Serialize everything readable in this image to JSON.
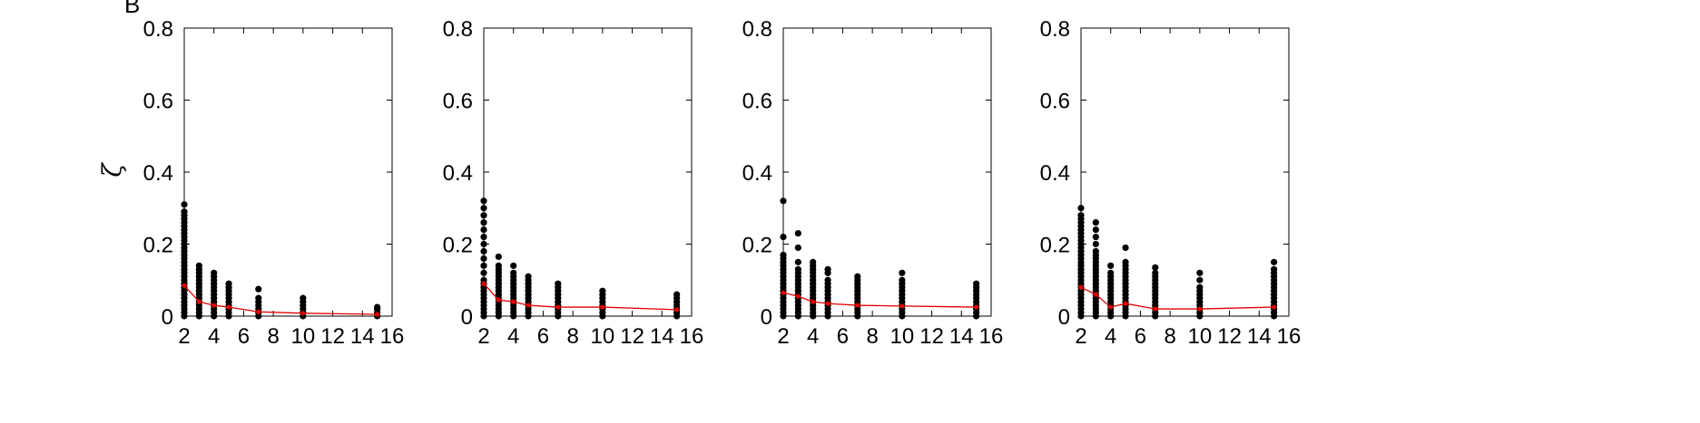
{
  "figure": {
    "panel_letter": "B",
    "ylabel": "ζ"
  },
  "style": {
    "point_color": "#000000",
    "mean_color": "#e00000",
    "axis_color": "#000000"
  },
  "chart_data": [
    {
      "type": "scatter",
      "xlim": [
        2,
        16
      ],
      "ylim": [
        0,
        0.8
      ],
      "xticks": [
        2,
        4,
        6,
        8,
        10,
        12,
        14,
        16
      ],
      "yticks": [
        0,
        0.2,
        0.4,
        0.6,
        0.8
      ],
      "ytick_labels": [
        "0",
        "0.2",
        "0.4",
        "0.6",
        "0.8"
      ],
      "ylabel": "ζ",
      "grid": false,
      "points": [
        {
          "x": 2,
          "y": [
            0.0,
            0.01,
            0.02,
            0.03,
            0.04,
            0.05,
            0.06,
            0.07,
            0.08,
            0.09,
            0.1,
            0.11,
            0.12,
            0.13,
            0.14,
            0.15,
            0.16,
            0.17,
            0.18,
            0.19,
            0.2,
            0.21,
            0.22,
            0.23,
            0.24,
            0.25,
            0.26,
            0.27,
            0.28,
            0.29,
            0.31
          ]
        },
        {
          "x": 3,
          "y": [
            0.0,
            0.01,
            0.02,
            0.03,
            0.04,
            0.05,
            0.06,
            0.07,
            0.08,
            0.09,
            0.1,
            0.11,
            0.12,
            0.13,
            0.14
          ]
        },
        {
          "x": 4,
          "y": [
            0.0,
            0.01,
            0.02,
            0.03,
            0.04,
            0.05,
            0.06,
            0.07,
            0.08,
            0.09,
            0.1,
            0.11,
            0.12
          ]
        },
        {
          "x": 5,
          "y": [
            0.0,
            0.01,
            0.02,
            0.03,
            0.04,
            0.05,
            0.06,
            0.07,
            0.08,
            0.09
          ]
        },
        {
          "x": 7,
          "y": [
            0.0,
            0.01,
            0.02,
            0.03,
            0.04,
            0.05,
            0.075
          ]
        },
        {
          "x": 10,
          "y": [
            0.0,
            0.01,
            0.02,
            0.03,
            0.04,
            0.05
          ]
        },
        {
          "x": 15,
          "y": [
            0.0,
            0.01,
            0.02,
            0.025
          ]
        }
      ],
      "mean_series": {
        "x": [
          2,
          3,
          4,
          5,
          7,
          10,
          15
        ],
        "y": [
          0.085,
          0.04,
          0.03,
          0.025,
          0.012,
          0.008,
          0.005
        ]
      }
    },
    {
      "type": "scatter",
      "xlim": [
        2,
        16
      ],
      "ylim": [
        0,
        0.8
      ],
      "xticks": [
        2,
        4,
        6,
        8,
        10,
        12,
        14,
        16
      ],
      "yticks": [
        0,
        0.2,
        0.4,
        0.6,
        0.8
      ],
      "ytick_labels": [
        "0",
        "0.2",
        "0.4",
        "0.6",
        "0.8"
      ],
      "grid": false,
      "points": [
        {
          "x": 2,
          "y": [
            0.0,
            0.01,
            0.02,
            0.03,
            0.04,
            0.05,
            0.06,
            0.07,
            0.08,
            0.09,
            0.1,
            0.12,
            0.14,
            0.16,
            0.18,
            0.2,
            0.22,
            0.24,
            0.26,
            0.28,
            0.3,
            0.32
          ]
        },
        {
          "x": 3,
          "y": [
            0.0,
            0.01,
            0.02,
            0.03,
            0.04,
            0.05,
            0.06,
            0.07,
            0.08,
            0.09,
            0.1,
            0.11,
            0.12,
            0.13,
            0.14,
            0.165
          ]
        },
        {
          "x": 4,
          "y": [
            0.0,
            0.01,
            0.02,
            0.03,
            0.04,
            0.05,
            0.06,
            0.07,
            0.08,
            0.09,
            0.1,
            0.11,
            0.12,
            0.14
          ]
        },
        {
          "x": 5,
          "y": [
            0.0,
            0.01,
            0.02,
            0.03,
            0.04,
            0.05,
            0.06,
            0.07,
            0.08,
            0.09,
            0.1,
            0.11
          ]
        },
        {
          "x": 7,
          "y": [
            0.0,
            0.01,
            0.02,
            0.03,
            0.04,
            0.05,
            0.06,
            0.07,
            0.08,
            0.09
          ]
        },
        {
          "x": 10,
          "y": [
            0.0,
            0.01,
            0.02,
            0.03,
            0.04,
            0.05,
            0.06,
            0.07
          ]
        },
        {
          "x": 15,
          "y": [
            0.0,
            0.01,
            0.02,
            0.03,
            0.04,
            0.05,
            0.06
          ]
        }
      ],
      "mean_series": {
        "x": [
          2,
          3,
          4,
          5,
          7,
          10,
          15
        ],
        "y": [
          0.09,
          0.045,
          0.04,
          0.03,
          0.025,
          0.025,
          0.018
        ]
      }
    },
    {
      "type": "scatter",
      "xlim": [
        2,
        16
      ],
      "ylim": [
        0,
        0.8
      ],
      "xticks": [
        2,
        4,
        6,
        8,
        10,
        12,
        14,
        16
      ],
      "yticks": [
        0,
        0.2,
        0.4,
        0.6,
        0.8
      ],
      "ytick_labels": [
        "0",
        "0.2",
        "0.4",
        "0.6",
        "0.8"
      ],
      "grid": false,
      "points": [
        {
          "x": 2,
          "y": [
            0.0,
            0.01,
            0.02,
            0.03,
            0.04,
            0.05,
            0.06,
            0.07,
            0.08,
            0.09,
            0.1,
            0.11,
            0.12,
            0.13,
            0.14,
            0.15,
            0.16,
            0.17,
            0.22,
            0.32
          ]
        },
        {
          "x": 3,
          "y": [
            0.0,
            0.01,
            0.02,
            0.03,
            0.04,
            0.05,
            0.06,
            0.07,
            0.08,
            0.09,
            0.1,
            0.11,
            0.12,
            0.13,
            0.15,
            0.19,
            0.23
          ]
        },
        {
          "x": 4,
          "y": [
            0.0,
            0.01,
            0.02,
            0.03,
            0.04,
            0.05,
            0.06,
            0.07,
            0.08,
            0.09,
            0.1,
            0.11,
            0.12,
            0.13,
            0.14,
            0.15
          ]
        },
        {
          "x": 5,
          "y": [
            0.0,
            0.01,
            0.02,
            0.03,
            0.04,
            0.05,
            0.06,
            0.07,
            0.08,
            0.09,
            0.1,
            0.12,
            0.13
          ]
        },
        {
          "x": 7,
          "y": [
            0.0,
            0.01,
            0.02,
            0.03,
            0.04,
            0.05,
            0.06,
            0.07,
            0.08,
            0.09,
            0.1,
            0.11
          ]
        },
        {
          "x": 10,
          "y": [
            0.0,
            0.01,
            0.02,
            0.03,
            0.04,
            0.05,
            0.06,
            0.07,
            0.08,
            0.09,
            0.1,
            0.12
          ]
        },
        {
          "x": 15,
          "y": [
            0.0,
            0.01,
            0.02,
            0.03,
            0.04,
            0.05,
            0.06,
            0.07,
            0.08,
            0.09
          ]
        }
      ],
      "mean_series": {
        "x": [
          2,
          3,
          4,
          5,
          7,
          10,
          15
        ],
        "y": [
          0.065,
          0.055,
          0.04,
          0.035,
          0.03,
          0.028,
          0.025
        ]
      }
    },
    {
      "type": "scatter",
      "xlim": [
        2,
        16
      ],
      "ylim": [
        0,
        0.8
      ],
      "xticks": [
        2,
        4,
        6,
        8,
        10,
        12,
        14,
        16
      ],
      "yticks": [
        0,
        0.2,
        0.4,
        0.6,
        0.8
      ],
      "ytick_labels": [
        "0",
        "0.2",
        "0.4",
        "0.6",
        "0.8"
      ],
      "grid": false,
      "points": [
        {
          "x": 2,
          "y": [
            0.0,
            0.01,
            0.02,
            0.03,
            0.04,
            0.05,
            0.06,
            0.07,
            0.08,
            0.09,
            0.1,
            0.11,
            0.12,
            0.13,
            0.14,
            0.15,
            0.16,
            0.17,
            0.18,
            0.19,
            0.2,
            0.21,
            0.22,
            0.23,
            0.24,
            0.25,
            0.26,
            0.27,
            0.28,
            0.3
          ]
        },
        {
          "x": 3,
          "y": [
            0.0,
            0.01,
            0.02,
            0.03,
            0.04,
            0.05,
            0.06,
            0.07,
            0.08,
            0.09,
            0.1,
            0.11,
            0.12,
            0.13,
            0.14,
            0.15,
            0.16,
            0.17,
            0.18,
            0.2,
            0.22,
            0.24,
            0.26
          ]
        },
        {
          "x": 4,
          "y": [
            0.0,
            0.01,
            0.02,
            0.03,
            0.04,
            0.05,
            0.06,
            0.07,
            0.08,
            0.09,
            0.1,
            0.11,
            0.12,
            0.14
          ]
        },
        {
          "x": 5,
          "y": [
            0.0,
            0.01,
            0.02,
            0.03,
            0.04,
            0.05,
            0.06,
            0.07,
            0.08,
            0.09,
            0.1,
            0.11,
            0.12,
            0.13,
            0.14,
            0.15,
            0.19
          ]
        },
        {
          "x": 7,
          "y": [
            0.0,
            0.01,
            0.02,
            0.03,
            0.04,
            0.05,
            0.06,
            0.07,
            0.08,
            0.09,
            0.1,
            0.11,
            0.12,
            0.135
          ]
        },
        {
          "x": 10,
          "y": [
            0.0,
            0.01,
            0.02,
            0.03,
            0.04,
            0.05,
            0.06,
            0.07,
            0.08,
            0.1,
            0.12
          ]
        },
        {
          "x": 15,
          "y": [
            0.0,
            0.01,
            0.02,
            0.03,
            0.04,
            0.05,
            0.06,
            0.07,
            0.08,
            0.09,
            0.1,
            0.11,
            0.12,
            0.13,
            0.15
          ]
        }
      ],
      "mean_series": {
        "x": [
          2,
          3,
          4,
          5,
          7,
          10,
          15
        ],
        "y": [
          0.08,
          0.06,
          0.025,
          0.035,
          0.02,
          0.02,
          0.025
        ]
      }
    }
  ]
}
